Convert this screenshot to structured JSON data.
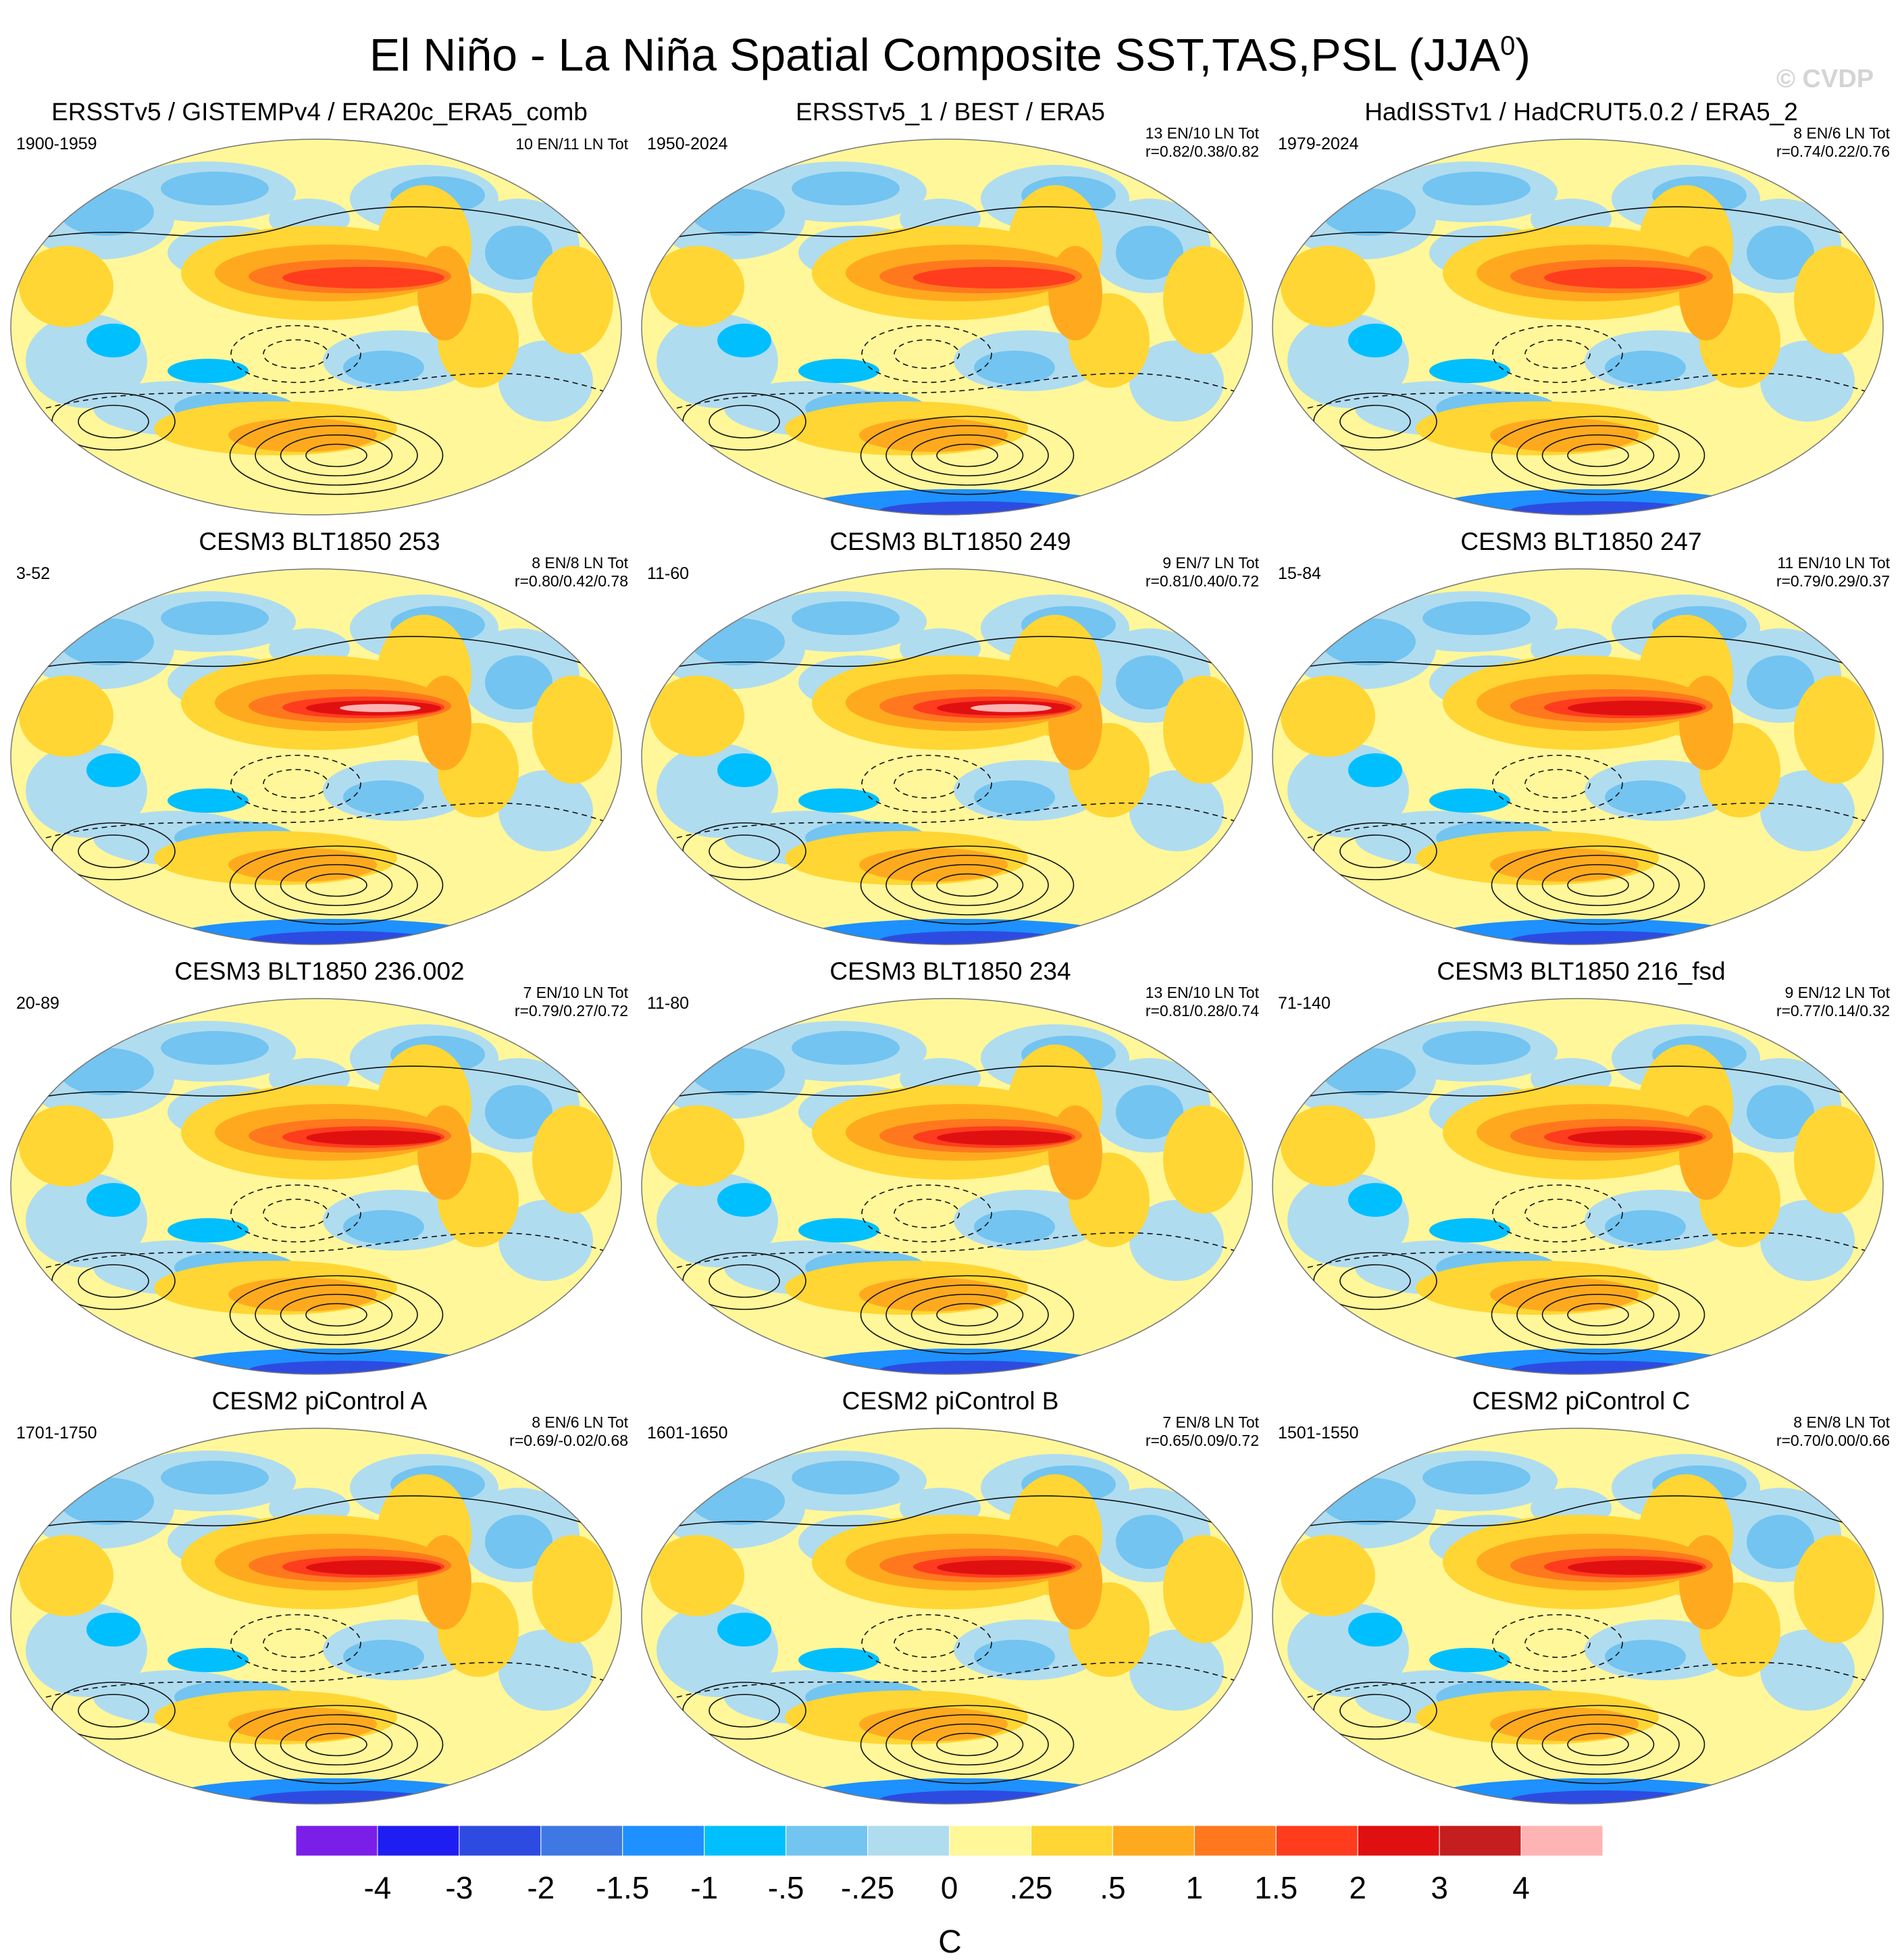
{
  "title_main": "El Niño - La Niña Spatial Composite SST,TAS,PSL (JJA",
  "title_sup": "0",
  "title_close": ")",
  "watermark": "© CVDP",
  "chart_data": {
    "type": "heatmap",
    "projection": "Robinson, Pacific-centered",
    "variables": [
      "SST",
      "TAS",
      "PSL"
    ],
    "season": "JJA0",
    "panels": [
      {
        "title": "ERSSTv5 / GISTEMPv4 / ERA20c_ERA5_comb",
        "years": "1900-1959",
        "counts": "10 EN/11 LN Tot",
        "corr": ""
      },
      {
        "title": "ERSSTv5_1 / BEST / ERA5",
        "years": "1950-2024",
        "counts": "13 EN/10 LN Tot",
        "corr": "r=0.82/0.38/0.82"
      },
      {
        "title": "HadISSTv1 / HadCRUT5.0.2 / ERA5_2",
        "years": "1979-2024",
        "counts": "8 EN/6 LN Tot",
        "corr": "r=0.74/0.22/0.76"
      },
      {
        "title": "CESM3 BLT1850 253",
        "years": "3-52",
        "counts": "8 EN/8 LN Tot",
        "corr": "r=0.80/0.42/0.78"
      },
      {
        "title": "CESM3 BLT1850 249",
        "years": "11-60",
        "counts": "9 EN/7 LN Tot",
        "corr": "r=0.81/0.40/0.72"
      },
      {
        "title": "CESM3 BLT1850 247",
        "years": "15-84",
        "counts": "11 EN/10 LN Tot",
        "corr": "r=0.79/0.29/0.37"
      },
      {
        "title": "CESM3 BLT1850 236.002",
        "years": "20-89",
        "counts": "7 EN/10 LN Tot",
        "corr": "r=0.79/0.27/0.72"
      },
      {
        "title": "CESM3 BLT1850 234",
        "years": "11-80",
        "counts": "13 EN/10 LN Tot",
        "corr": "r=0.81/0.28/0.74"
      },
      {
        "title": "CESM3 BLT1850 216_fsd",
        "years": "71-140",
        "counts": "9 EN/12 LN Tot",
        "corr": "r=0.77/0.14/0.32"
      },
      {
        "title": "CESM2 piControl A",
        "years": "1701-1750",
        "counts": "8 EN/6 LN Tot",
        "corr": "r=0.69/-0.02/0.68"
      },
      {
        "title": "CESM2 piControl B",
        "years": "1601-1650",
        "counts": "7 EN/8 LN Tot",
        "corr": "r=0.65/0.09/0.72"
      },
      {
        "title": "CESM2 piControl C",
        "years": "1501-1550",
        "counts": "8 EN/8 LN Tot",
        "corr": "r=0.70/0.00/0.66"
      }
    ],
    "colorbar": {
      "labels": [
        "-4",
        "-3",
        "-2",
        "-1.5",
        "-1",
        "-.5",
        "-.25",
        "0",
        ".25",
        ".5",
        "1",
        "1.5",
        "2",
        "3",
        "4"
      ],
      "colors": [
        "#7b1fe8",
        "#1e1ef2",
        "#2d4be0",
        "#3e78e3",
        "#1e90ff",
        "#00bfff",
        "#73c4f0",
        "#b0dcf0",
        "#fff799",
        "#ffd633",
        "#ffaa1e",
        "#ff781e",
        "#ff3c1e",
        "#e01010",
        "#c41e1e",
        "#ffb4b4"
      ],
      "unit": "C"
    }
  }
}
